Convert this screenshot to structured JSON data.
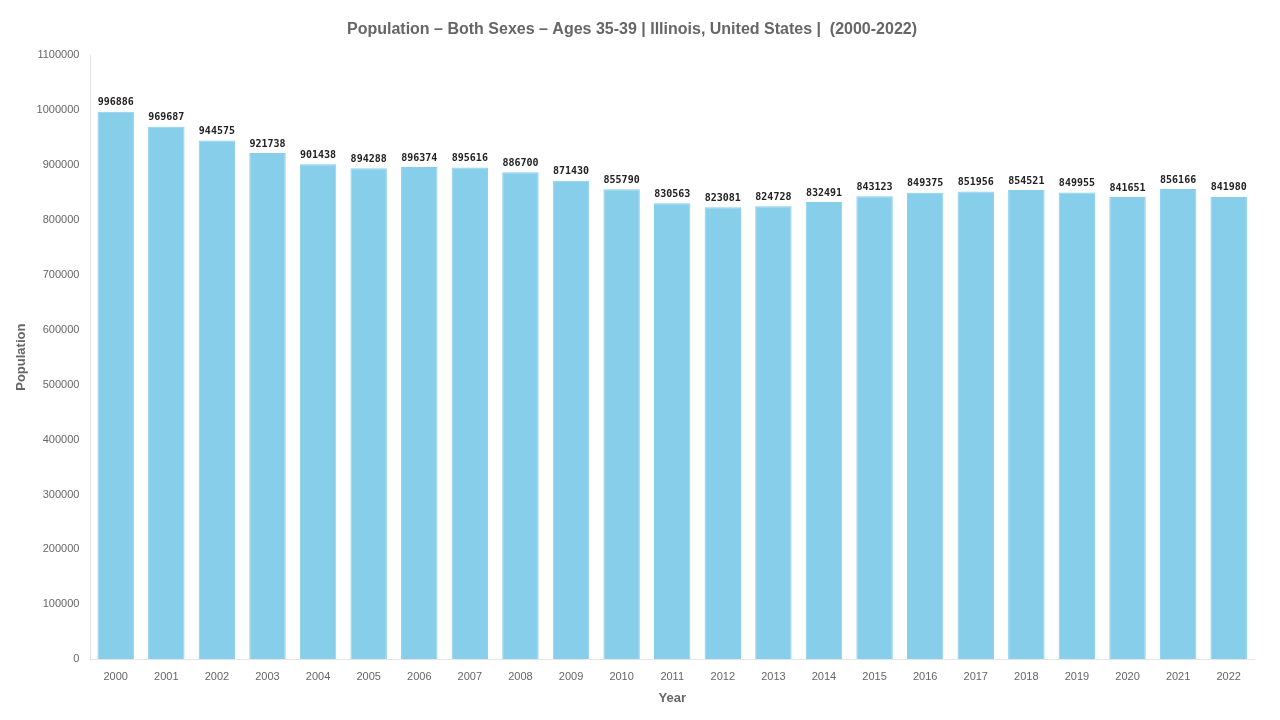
{
  "chart_data": {
    "type": "bar",
    "title": "Population – Both Sexes – Ages 35-39 | Illinois, United States |  (2000-2022)",
    "x_label": "Year",
    "y_label": "Population",
    "categories": [
      "2000",
      "2001",
      "2002",
      "2003",
      "2004",
      "2005",
      "2006",
      "2007",
      "2008",
      "2009",
      "2010",
      "2011",
      "2012",
      "2013",
      "2014",
      "2015",
      "2016",
      "2017",
      "2018",
      "2019",
      "2020",
      "2021",
      "2022"
    ],
    "values": [
      996886,
      969687,
      944575,
      921738,
      901438,
      894288,
      896374,
      895616,
      886700,
      871430,
      855790,
      830563,
      823081,
      824728,
      832491,
      843123,
      849375,
      851956,
      854521,
      849955,
      841651,
      856166,
      841980
    ],
    "color": "#87CEEB",
    "ylim": [
      0,
      1100000
    ],
    "yticks": [
      0,
      100000,
      200000,
      300000,
      400000,
      500000,
      600000,
      700000,
      800000,
      900000,
      1000000,
      1100000
    ],
    "grid": false,
    "data_labels": true
  }
}
